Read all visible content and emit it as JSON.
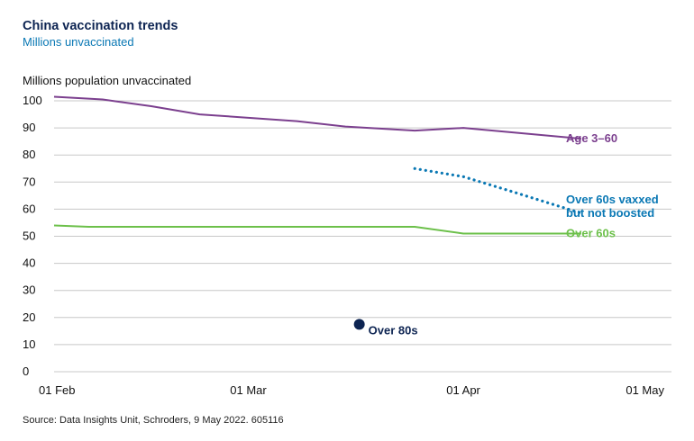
{
  "title": "China vaccination trends",
  "subtitle": "Millions unvaccinated",
  "source": "Source: Data Insights Unit, Schroders, 9 May 2022. 605116",
  "chart_data": {
    "type": "line",
    "ylabel": "Millions population unvaccinated",
    "ylim": [
      0,
      100
    ],
    "yticks": [
      "0",
      "10",
      "20",
      "30",
      "40",
      "50",
      "60",
      "70",
      "80",
      "90",
      "100"
    ],
    "xlim": [
      "2022-02-01",
      "2022-05-01"
    ],
    "xticks": [
      {
        "date": "2022-02-01",
        "label": "01 Feb"
      },
      {
        "date": "2022-03-01",
        "label": "01 Mar"
      },
      {
        "date": "2022-04-01",
        "label": "01 Apr"
      },
      {
        "date": "2022-05-01",
        "label": "01 May"
      }
    ],
    "grid": true,
    "series": [
      {
        "name": "Age 3–60",
        "color": "#7b3f8e",
        "style": "solid",
        "points": [
          [
            "2022-02-01",
            101.5
          ],
          [
            "2022-02-08",
            100.5
          ],
          [
            "2022-02-15",
            98.0
          ],
          [
            "2022-02-22",
            95.0
          ],
          [
            "2022-03-08",
            92.5
          ],
          [
            "2022-03-15",
            90.5
          ],
          [
            "2022-03-25",
            89.0
          ],
          [
            "2022-04-01",
            90.0
          ],
          [
            "2022-04-18",
            86.0
          ]
        ]
      },
      {
        "name": "Over 60s vaxxed\nbut not boosted",
        "color": "#0a78b4",
        "style": "dotted",
        "points": [
          [
            "2022-03-25",
            75.0
          ],
          [
            "2022-04-01",
            72.0
          ],
          [
            "2022-04-08",
            66.5
          ],
          [
            "2022-04-18",
            58.5
          ]
        ]
      },
      {
        "name": "Over 60s",
        "color": "#6cc04a",
        "style": "solid",
        "points": [
          [
            "2022-02-01",
            54.0
          ],
          [
            "2022-02-06",
            53.5
          ],
          [
            "2022-03-25",
            53.5
          ],
          [
            "2022-04-01",
            51.0
          ],
          [
            "2022-04-18",
            51.0
          ]
        ]
      },
      {
        "name": "Over 80s",
        "color": "#0d2452",
        "style": "point",
        "points": [
          [
            "2022-03-17",
            17.5
          ]
        ]
      }
    ]
  }
}
